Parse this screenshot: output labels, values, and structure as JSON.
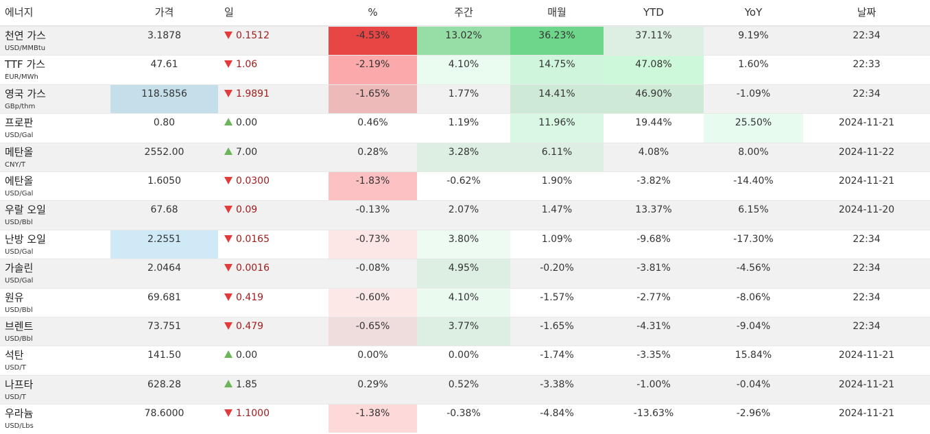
{
  "headers": [
    "에너지",
    "가격",
    "일",
    "%",
    "주간",
    "매월",
    "YTD",
    "YoY",
    "날짜"
  ],
  "colors": {
    "up_triangle": "#6cb55a",
    "down_triangle": "#e23b3b",
    "down_text": "#a11d1d",
    "row_alt": "#f1f1f1"
  },
  "rows": [
    {
      "name": "천연 가스",
      "unit": "USD/MMBtu",
      "price": "3.1878",
      "dir": "down",
      "change": "0.1512",
      "pct": "-4.53%",
      "week": "13.02%",
      "month": "36.23%",
      "ytd": "37.11%",
      "yoy": "9.19%",
      "date": "22:34",
      "bg": {
        "price": "",
        "pct": "#e84545",
        "week": "#95dea6",
        "month": "#6ed68a",
        "ytd": "#dcefe2",
        "yoy": ""
      }
    },
    {
      "name": "TTF 가스",
      "unit": "EUR/MWh",
      "price": "47.61",
      "dir": "down",
      "change": "1.06",
      "pct": "-2.19%",
      "week": "4.10%",
      "month": "14.75%",
      "ytd": "47.08%",
      "yoy": "1.60%",
      "date": "22:33",
      "bg": {
        "price": "",
        "pct": "#fba9aa",
        "week": "#eafbef",
        "month": "#d0f5dd",
        "ytd": "#cdf8da",
        "yoy": ""
      }
    },
    {
      "name": "영국 가스",
      "unit": "GBp/thm",
      "price": "118.5856",
      "dir": "down",
      "change": "1.9891",
      "pct": "-1.65%",
      "week": "1.77%",
      "month": "14.41%",
      "ytd": "46.90%",
      "yoy": "-1.09%",
      "date": "22:34",
      "bg": {
        "price": "#c5dfea",
        "pct": "#eeb9b9",
        "week": "",
        "month": "#cfe9d7",
        "ytd": "#cfe9d7",
        "yoy": ""
      }
    },
    {
      "name": "프로판",
      "unit": "USD/Gal",
      "price": "0.80",
      "dir": "up",
      "change": "0.00",
      "pct": "0.46%",
      "week": "1.19%",
      "month": "11.96%",
      "ytd": "19.44%",
      "yoy": "25.50%",
      "date": "2024-11-21",
      "bg": {
        "price": "",
        "pct": "",
        "week": "",
        "month": "#d9f8e3",
        "ytd": "",
        "yoy": "#e8fbef"
      }
    },
    {
      "name": "메탄올",
      "unit": "CNY/T",
      "price": "2552.00",
      "dir": "up",
      "change": "7.00",
      "pct": "0.28%",
      "week": "3.28%",
      "month": "6.11%",
      "ytd": "4.08%",
      "yoy": "8.00%",
      "date": "2024-11-22",
      "bg": {
        "price": "",
        "pct": "",
        "week": "#ddeee2",
        "month": "#ddeee2",
        "ytd": "",
        "yoy": ""
      }
    },
    {
      "name": "에탄올",
      "unit": "USD/Gal",
      "price": "1.6050",
      "dir": "down",
      "change": "0.0300",
      "pct": "-1.83%",
      "week": "-0.62%",
      "month": "1.90%",
      "ytd": "-3.82%",
      "yoy": "-14.40%",
      "date": "2024-11-21",
      "bg": {
        "price": "",
        "pct": "#fcc1c2",
        "week": "",
        "month": "",
        "ytd": "",
        "yoy": ""
      }
    },
    {
      "name": "우랄 오일",
      "unit": "USD/Bbl",
      "price": "67.68",
      "dir": "down",
      "change": "0.09",
      "pct": "-0.13%",
      "week": "2.07%",
      "month": "1.47%",
      "ytd": "13.37%",
      "yoy": "6.15%",
      "date": "2024-11-20",
      "bg": {
        "price": "",
        "pct": "",
        "week": "",
        "month": "",
        "ytd": "",
        "yoy": ""
      }
    },
    {
      "name": "난방 오일",
      "unit": "USD/Gal",
      "price": "2.2551",
      "dir": "down",
      "change": "0.0165",
      "pct": "-0.73%",
      "week": "3.80%",
      "month": "1.09%",
      "ytd": "-9.68%",
      "yoy": "-17.30%",
      "date": "22:34",
      "bg": {
        "price": "#cfe9f6",
        "pct": "#fde6e6",
        "week": "#eefbf2",
        "month": "",
        "ytd": "",
        "yoy": ""
      }
    },
    {
      "name": "가솔린",
      "unit": "USD/Gal",
      "price": "2.0464",
      "dir": "down",
      "change": "0.0016",
      "pct": "-0.08%",
      "week": "4.95%",
      "month": "-0.20%",
      "ytd": "-3.81%",
      "yoy": "-4.56%",
      "date": "22:34",
      "bg": {
        "price": "",
        "pct": "",
        "week": "#dcefe2",
        "month": "",
        "ytd": "",
        "yoy": ""
      }
    },
    {
      "name": "원유",
      "unit": "USD/Bbl",
      "price": "69.681",
      "dir": "down",
      "change": "0.419",
      "pct": "-0.60%",
      "week": "4.10%",
      "month": "-1.57%",
      "ytd": "-2.77%",
      "yoy": "-8.06%",
      "date": "22:34",
      "bg": {
        "price": "",
        "pct": "#fde8e8",
        "week": "#eafaef",
        "month": "",
        "ytd": "",
        "yoy": ""
      }
    },
    {
      "name": "브렌트",
      "unit": "USD/Bbl",
      "price": "73.751",
      "dir": "down",
      "change": "0.479",
      "pct": "-0.65%",
      "week": "3.77%",
      "month": "-1.65%",
      "ytd": "-4.31%",
      "yoy": "-9.04%",
      "date": "22:34",
      "bg": {
        "price": "",
        "pct": "#efdcdc",
        "week": "#ddeee2",
        "month": "",
        "ytd": "",
        "yoy": ""
      }
    },
    {
      "name": "석탄",
      "unit": "USD/T",
      "price": "141.50",
      "dir": "up",
      "change": "0.00",
      "pct": "0.00%",
      "week": "0.00%",
      "month": "-1.74%",
      "ytd": "-3.35%",
      "yoy": "15.84%",
      "date": "2024-11-21",
      "bg": {
        "price": "",
        "pct": "",
        "week": "",
        "month": "",
        "ytd": "",
        "yoy": ""
      }
    },
    {
      "name": "나프타",
      "unit": "USD/T",
      "price": "628.28",
      "dir": "up",
      "change": "1.85",
      "pct": "0.29%",
      "week": "0.52%",
      "month": "-3.38%",
      "ytd": "-1.00%",
      "yoy": "-0.04%",
      "date": "2024-11-21",
      "bg": {
        "price": "",
        "pct": "",
        "week": "",
        "month": "",
        "ytd": "",
        "yoy": ""
      }
    },
    {
      "name": "우라늄",
      "unit": "USD/Lbs",
      "price": "78.6000",
      "dir": "down",
      "change": "1.1000",
      "pct": "-1.38%",
      "week": "-0.38%",
      "month": "-4.84%",
      "ytd": "-13.63%",
      "yoy": "-2.96%",
      "date": "2024-11-21",
      "bg": {
        "price": "",
        "pct": "#fdd9d9",
        "week": "",
        "month": "",
        "ytd": "",
        "yoy": ""
      }
    }
  ]
}
